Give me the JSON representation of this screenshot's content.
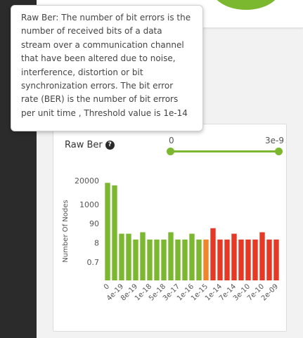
{
  "tooltip": {
    "text": "Raw Ber: The number of bit errors is the number of received bits of a data stream over a communication channel that have been altered due to noise, interference, distortion or bit synchronization errors. The bit error rate (BER) is the number of bit errors per unit time , Threshold value is 1e-14"
  },
  "card": {
    "title": "Raw Ber",
    "help_icon": "question-circle-icon",
    "slider": {
      "min_label": "0",
      "max_label": "3e-9",
      "range": [
        0,
        1
      ],
      "color": "#7cb82f"
    }
  },
  "colors": {
    "normal": "#7cb82f",
    "threshold": "#f0862a",
    "above_threshold": "#e53925"
  },
  "chart_data": {
    "type": "bar",
    "ylabel": "Number Of Nodes",
    "y_ticks": [
      "20000",
      "1000",
      "90",
      "8",
      "0.7"
    ],
    "x_tick_labels": [
      "0",
      "4e-19",
      "8e-19",
      "1e-18",
      "5e-18",
      "3e-17",
      "1e-16",
      "1e-15",
      "1e-14",
      "7e-14",
      "3e-10",
      "7e-10",
      "2e-09"
    ],
    "tick_every": 2,
    "threshold_index": 14,
    "values": [
      15000,
      11000,
      25,
      25,
      12,
      30,
      12,
      12,
      12,
      30,
      12,
      12,
      25,
      12,
      12,
      50,
      12,
      12,
      25,
      12,
      12,
      12,
      30,
      12,
      12
    ]
  }
}
